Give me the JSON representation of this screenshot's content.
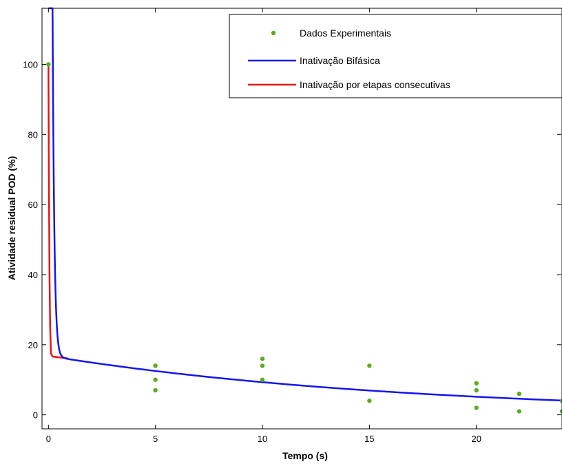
{
  "chart_data": {
    "type": "line",
    "title": "",
    "xlabel": "Tempo (s)",
    "ylabel": "Atividade residual POD (%)",
    "xlim": [
      -0.3,
      24
    ],
    "ylim": [
      -4,
      116
    ],
    "xticks": [
      0,
      5,
      10,
      15,
      20
    ],
    "yticks": [
      0,
      20,
      40,
      60,
      80,
      100
    ],
    "grid": false,
    "legend_position": "top-right",
    "series": [
      {
        "name": "Dados Experimentais",
        "kind": "scatter",
        "color": "#5aab22",
        "points": [
          [
            0,
            100
          ],
          [
            5,
            14
          ],
          [
            5,
            10
          ],
          [
            5,
            7
          ],
          [
            10,
            16
          ],
          [
            10,
            14
          ],
          [
            10,
            10
          ],
          [
            15,
            14
          ],
          [
            15,
            4
          ],
          [
            20,
            9
          ],
          [
            20,
            7
          ],
          [
            20,
            2
          ],
          [
            22,
            6
          ],
          [
            22,
            1
          ],
          [
            24,
            4
          ],
          [
            24,
            1
          ]
        ]
      },
      {
        "name": "Inativação Bifásica",
        "kind": "line",
        "color": "#1414f0",
        "model": {
          "a": 1000,
          "k1": 12,
          "b": 16.8,
          "k2": 0.059
        },
        "x_range": [
          0,
          24
        ]
      },
      {
        "name": "Inativação por etapas consecutivas",
        "kind": "line",
        "color": "#e81414",
        "points": [
          [
            0,
            100
          ],
          [
            0.02,
            70
          ],
          [
            0.05,
            40
          ],
          [
            0.08,
            25
          ],
          [
            0.12,
            17.5
          ],
          [
            0.2,
            16.6
          ],
          [
            0.5,
            16.4
          ],
          [
            0.9,
            16.1
          ]
        ]
      }
    ]
  }
}
